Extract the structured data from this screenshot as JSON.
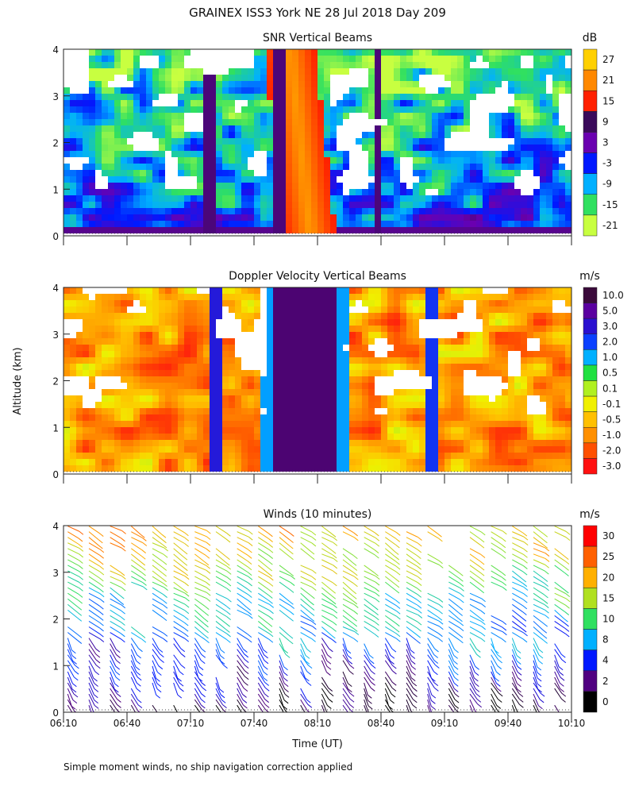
{
  "title": "GRAINEX ISS3 York NE  28 Jul 2018 Day 209",
  "ylabel": "Altitude (km)",
  "xlabel": "Time (UT)",
  "footnote": "Simple moment winds, no ship navigation correction applied",
  "chart_data": [
    {
      "type": "heatmap",
      "title": "SNR Vertical Beams",
      "unit": "dB",
      "x_ticks": [
        "06:10",
        "06:40",
        "07:10",
        "07:40",
        "08:10",
        "08:40",
        "09:10",
        "09:40",
        "10:10"
      ],
      "y_ticks": [
        "0",
        "1",
        "2",
        "3",
        "4"
      ],
      "xlim": [
        "06:10",
        "10:10"
      ],
      "ylim": [
        0,
        4
      ],
      "colorbar": {
        "labels": [
          "27",
          "21",
          "15",
          "9",
          "3",
          "-3",
          "-9",
          "-15",
          "-21"
        ],
        "colors": [
          "#ffd000",
          "#ff8800",
          "#ff2000",
          "#3a0a5a",
          "#6a00b0",
          "#0018ff",
          "#00b0ff",
          "#30e060",
          "#c8ff40"
        ]
      }
    },
    {
      "type": "heatmap",
      "title": "Doppler Velocity Vertical Beams",
      "unit": "m/s",
      "x_ticks": [
        "06:10",
        "06:40",
        "07:10",
        "07:40",
        "08:10",
        "08:40",
        "09:10",
        "09:40",
        "10:10"
      ],
      "y_ticks": [
        "0",
        "1",
        "2",
        "3",
        "4"
      ],
      "xlim": [
        "06:10",
        "10:10"
      ],
      "ylim": [
        0,
        4
      ],
      "colorbar": {
        "labels": [
          "10.0",
          "5.0",
          "3.0",
          "2.0",
          "1.0",
          "0.5",
          "0.1",
          "-0.1",
          "-0.5",
          "-1.0",
          "-2.0",
          "-3.0"
        ],
        "colors": [
          "#3a0a3a",
          "#5a00a0",
          "#2a10d0",
          "#0a40ff",
          "#00b0ff",
          "#20e040",
          "#b0f020",
          "#f0f000",
          "#ffc000",
          "#ff9000",
          "#ff5000",
          "#ff1010"
        ]
      }
    },
    {
      "type": "scatter",
      "title": "Winds (10 minutes)",
      "unit": "m/s",
      "x_ticks": [
        "06:10",
        "06:40",
        "07:10",
        "07:40",
        "08:10",
        "08:40",
        "09:10",
        "09:40",
        "10:10"
      ],
      "y_ticks": [
        "0",
        "1",
        "2",
        "3",
        "4"
      ],
      "xlim": [
        "06:10",
        "10:10"
      ],
      "ylim": [
        0,
        4
      ],
      "colorbar": {
        "labels": [
          "30",
          "25",
          "20",
          "15",
          "10",
          "8",
          "4",
          "2",
          "0"
        ],
        "colors": [
          "#ff0000",
          "#ff6000",
          "#ffb000",
          "#b0e020",
          "#30e060",
          "#00b0ff",
          "#0018ff",
          "#500080",
          "#000000"
        ]
      }
    }
  ]
}
